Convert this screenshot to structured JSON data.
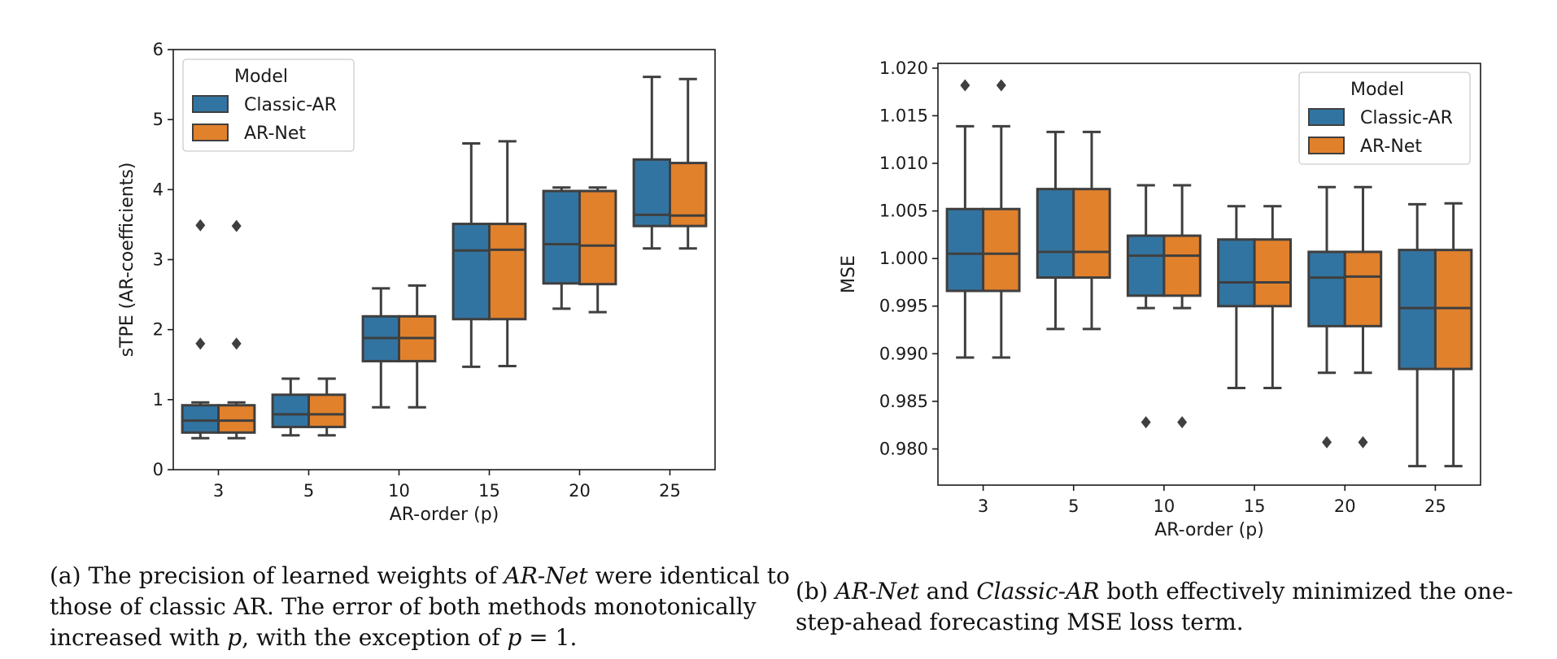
{
  "figure": {
    "caption_a": "(a) The precision of learned weights of AR-Net were identical to those of classic AR. The error of both methods monotonically increased with p, with the exception of p = 1.",
    "caption_b": "(b) AR-Net and Classic-AR both effectively minimized the one-step-ahead forecasting MSE loss term."
  },
  "chart_data": [
    {
      "type": "box",
      "panel": "a",
      "xlabel": "AR-order (p)",
      "ylabel": "sTPE (AR-coefficients)",
      "ylim": [
        0,
        6
      ],
      "yticks": [
        "0",
        "1",
        "2",
        "3",
        "4",
        "5",
        "6"
      ],
      "categories": [
        "3",
        "5",
        "10",
        "15",
        "20",
        "25"
      ],
      "legend": {
        "title": "Model",
        "position": "upper-left",
        "entries": [
          "Classic-AR",
          "AR-Net"
        ]
      },
      "colors": {
        "Classic-AR": "#3274a1",
        "AR-Net": "#e1812c",
        "lines": "#3f3f3f"
      },
      "series": [
        {
          "name": "Classic-AR",
          "boxes": [
            {
              "q1": 0.53,
              "median": 0.7,
              "q3": 0.92,
              "whislo": 0.45,
              "whishi": 0.96,
              "fliers": [
                1.8,
                3.49
              ]
            },
            {
              "q1": 0.61,
              "median": 0.79,
              "q3": 1.07,
              "whislo": 0.49,
              "whishi": 1.3,
              "fliers": []
            },
            {
              "q1": 1.55,
              "median": 1.88,
              "q3": 2.19,
              "whislo": 0.89,
              "whishi": 2.59,
              "fliers": []
            },
            {
              "q1": 2.15,
              "median": 3.13,
              "q3": 3.51,
              "whislo": 1.47,
              "whishi": 4.66,
              "fliers": []
            },
            {
              "q1": 2.66,
              "median": 3.22,
              "q3": 3.98,
              "whislo": 2.3,
              "whishi": 4.03,
              "fliers": []
            },
            {
              "q1": 3.48,
              "median": 3.64,
              "q3": 4.43,
              "whislo": 3.16,
              "whishi": 5.61,
              "fliers": []
            }
          ]
        },
        {
          "name": "AR-Net",
          "boxes": [
            {
              "q1": 0.53,
              "median": 0.7,
              "q3": 0.92,
              "whislo": 0.45,
              "whishi": 0.96,
              "fliers": [
                1.8,
                3.48
              ]
            },
            {
              "q1": 0.61,
              "median": 0.79,
              "q3": 1.07,
              "whislo": 0.49,
              "whishi": 1.3,
              "fliers": []
            },
            {
              "q1": 1.55,
              "median": 1.88,
              "q3": 2.19,
              "whislo": 0.89,
              "whishi": 2.63,
              "fliers": []
            },
            {
              "q1": 2.15,
              "median": 3.14,
              "q3": 3.51,
              "whislo": 1.48,
              "whishi": 4.69,
              "fliers": []
            },
            {
              "q1": 2.65,
              "median": 3.2,
              "q3": 3.98,
              "whislo": 2.25,
              "whishi": 4.03,
              "fliers": []
            },
            {
              "q1": 3.48,
              "median": 3.63,
              "q3": 4.38,
              "whislo": 3.16,
              "whishi": 5.58,
              "fliers": []
            }
          ]
        }
      ]
    },
    {
      "type": "box",
      "panel": "b",
      "xlabel": "AR-order (p)",
      "ylabel": "MSE",
      "ylim": [
        0.9762,
        1.0205
      ],
      "yticks": [
        "0.980",
        "0.985",
        "0.990",
        "0.995",
        "1.000",
        "1.005",
        "1.010",
        "1.015",
        "1.020"
      ],
      "categories": [
        "3",
        "5",
        "10",
        "15",
        "20",
        "25"
      ],
      "legend": {
        "title": "Model",
        "position": "upper-right",
        "entries": [
          "Classic-AR",
          "AR-Net"
        ]
      },
      "colors": {
        "Classic-AR": "#3274a1",
        "AR-Net": "#e1812c",
        "lines": "#3f3f3f"
      },
      "series": [
        {
          "name": "Classic-AR",
          "boxes": [
            {
              "q1": 0.9966,
              "median": 1.0005,
              "q3": 1.0052,
              "whislo": 0.9896,
              "whishi": 1.0139,
              "fliers": [
                1.0182
              ]
            },
            {
              "q1": 0.998,
              "median": 1.0007,
              "q3": 1.0073,
              "whislo": 0.9926,
              "whishi": 1.0133,
              "fliers": []
            },
            {
              "q1": 0.9961,
              "median": 1.0003,
              "q3": 1.0024,
              "whislo": 0.9948,
              "whishi": 1.0077,
              "fliers": [
                0.9828
              ]
            },
            {
              "q1": 0.995,
              "median": 0.9975,
              "q3": 1.002,
              "whislo": 0.9864,
              "whishi": 1.0055,
              "fliers": []
            },
            {
              "q1": 0.9929,
              "median": 0.998,
              "q3": 1.0007,
              "whislo": 0.988,
              "whishi": 1.0075,
              "fliers": [
                0.9807
              ]
            },
            {
              "q1": 0.9884,
              "median": 0.9948,
              "q3": 1.0009,
              "whislo": 0.9782,
              "whishi": 1.0057,
              "fliers": []
            }
          ]
        },
        {
          "name": "AR-Net",
          "boxes": [
            {
              "q1": 0.9966,
              "median": 1.0005,
              "q3": 1.0052,
              "whislo": 0.9896,
              "whishi": 1.0139,
              "fliers": [
                1.0182
              ]
            },
            {
              "q1": 0.998,
              "median": 1.0007,
              "q3": 1.0073,
              "whislo": 0.9926,
              "whishi": 1.0133,
              "fliers": []
            },
            {
              "q1": 0.9961,
              "median": 1.0003,
              "q3": 1.0024,
              "whislo": 0.9948,
              "whishi": 1.0077,
              "fliers": [
                0.9828
              ]
            },
            {
              "q1": 0.995,
              "median": 0.9975,
              "q3": 1.002,
              "whislo": 0.9864,
              "whishi": 1.0055,
              "fliers": []
            },
            {
              "q1": 0.9929,
              "median": 0.9981,
              "q3": 1.0007,
              "whislo": 0.988,
              "whishi": 1.0075,
              "fliers": [
                0.9807
              ]
            },
            {
              "q1": 0.9884,
              "median": 0.9948,
              "q3": 1.0009,
              "whislo": 0.9782,
              "whishi": 1.0058,
              "fliers": []
            }
          ]
        }
      ]
    }
  ]
}
